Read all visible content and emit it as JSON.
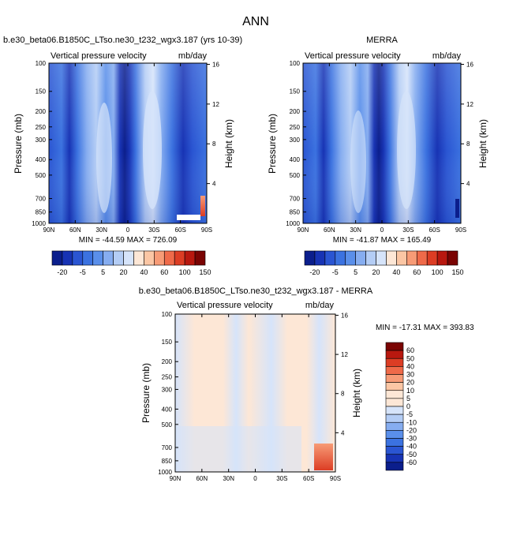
{
  "page_title": "ANN",
  "colors": {
    "neg4": "#0b1e8c",
    "neg3": "#1733b4",
    "neg2": "#2a55d2",
    "neg1": "#3b72e0",
    "n0": "#5a8fea",
    "n1": "#86adf0",
    "n2": "#b4cdf5",
    "n3": "#d6e4fa",
    "pos0": "#fde7d6",
    "pos1": "#fbc6a4",
    "pos2": "#f79b76",
    "pos3": "#ef6a49",
    "pos4": "#dc3d24",
    "pos5": "#b8180f",
    "pos6": "#7a0403"
  },
  "chart_data": [
    {
      "type": "heatmap",
      "title": "b.e30_beta06.B1850C_LTso.ne30_t232_wgx3.187 (yrs 10-39)",
      "left_string": "Vertical pressure velocity",
      "right_string": "mb/day",
      "ylabel": "Pressure (mb)",
      "ylabel_right": "Height (km)",
      "x_ticks": [
        "90N",
        "60N",
        "30N",
        "0",
        "30S",
        "60S",
        "90S"
      ],
      "y_ticks": [
        "100",
        "150",
        "200",
        "250",
        "300",
        "400",
        "500",
        "700",
        "850",
        "1000"
      ],
      "y_right_ticks": [
        "16",
        "12",
        "8",
        "4"
      ],
      "stats": "MIN = -44.59   MAX = 726.09",
      "min": -44.59,
      "max": 726.09,
      "colorbar_labels": [
        "-20",
        "-5",
        "5",
        "20",
        "40",
        "60",
        "100",
        "150"
      ]
    },
    {
      "type": "heatmap",
      "title": "MERRA",
      "left_string": "Vertical pressure velocity",
      "right_string": "mb/day",
      "ylabel": "Pressure (mb)",
      "ylabel_right": "Height (km)",
      "x_ticks": [
        "90N",
        "60N",
        "30N",
        "0",
        "30S",
        "60S",
        "90S"
      ],
      "y_ticks": [
        "100",
        "150",
        "200",
        "250",
        "300",
        "400",
        "500",
        "700",
        "850",
        "1000"
      ],
      "y_right_ticks": [
        "16",
        "12",
        "8",
        "4"
      ],
      "stats": "MIN = -41.87   MAX = 165.49",
      "min": -41.87,
      "max": 165.49,
      "colorbar_labels": [
        "-20",
        "-5",
        "5",
        "20",
        "40",
        "60",
        "100",
        "150"
      ]
    },
    {
      "type": "heatmap",
      "title": "b.e30_beta06.B1850C_LTso.ne30_t232_wgx3.187 - MERRA",
      "left_string": "Vertical pressure velocity",
      "right_string": "mb/day",
      "ylabel": "Pressure (mb)",
      "ylabel_right": "Height (km)",
      "x_ticks": [
        "90N",
        "60N",
        "30N",
        "0",
        "30S",
        "60S",
        "90S"
      ],
      "y_ticks": [
        "100",
        "150",
        "200",
        "250",
        "300",
        "400",
        "500",
        "700",
        "850",
        "1000"
      ],
      "y_right_ticks": [
        "16",
        "12",
        "8",
        "4"
      ],
      "stats": "MIN = -17.31   MAX = 393.83",
      "min": -17.31,
      "max": 393.83,
      "colorbar_labels": [
        "60",
        "50",
        "40",
        "30",
        "20",
        "10",
        "5",
        "0",
        "-5",
        "-10",
        "-20",
        "-30",
        "-40",
        "-50",
        "-60"
      ]
    }
  ]
}
